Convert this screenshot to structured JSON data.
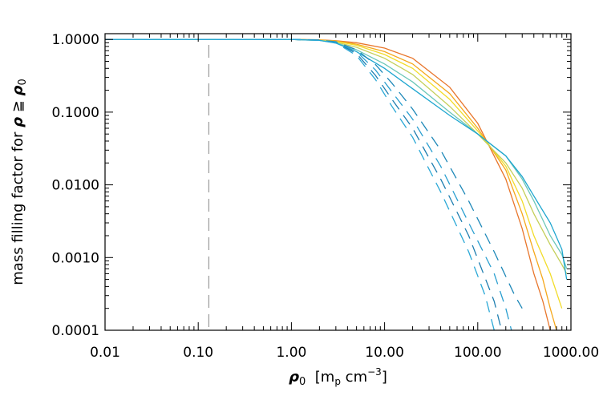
{
  "chart_data": {
    "type": "line",
    "title": "",
    "xlabel": "ρ₀ [m_p cm⁻³]",
    "xlabel_parts": {
      "symbol": "ρ",
      "subscript": "0",
      "unit": "[m",
      "unit_sub": "p",
      "unit_rest": " cm",
      "unit_sup": "−3",
      "close": "]"
    },
    "ylabel": "mass filling factor for ρ ≧ ρ₀",
    "ylabel_parts": {
      "text": "mass filling factor for ",
      "symbol": "ρ",
      "relation": " ≧ ",
      "symbol2": "ρ",
      "subscript": "0"
    },
    "x_scale": "log",
    "y_scale": "log",
    "xlim": [
      0.01,
      1000
    ],
    "ylim": [
      0.0001,
      1.2
    ],
    "x_ticks": [
      0.01,
      0.1,
      1,
      10,
      100,
      1000
    ],
    "x_tick_labels": [
      "0.01",
      "0.10",
      "1.00",
      "10.00",
      "100.00",
      "1000.00"
    ],
    "y_ticks": [
      0.0001,
      0.001,
      0.01,
      0.1,
      1
    ],
    "y_tick_labels": [
      "0.0001",
      "0.0010",
      "0.0100",
      "0.1000",
      "1.0000"
    ],
    "grid": false,
    "legend": "none",
    "vline": {
      "x": 0.13,
      "color": "#9a9a9a",
      "style": "dashed"
    },
    "series": [
      {
        "color": "#e8762c",
        "style": "solid",
        "x": [
          0.01,
          1,
          2,
          3,
          5,
          10,
          20,
          50,
          100,
          200,
          300,
          400,
          500,
          600
        ],
        "y": [
          1,
          1,
          0.99,
          0.96,
          0.9,
          0.76,
          0.55,
          0.22,
          0.07,
          0.012,
          0.0025,
          0.0006,
          0.00025,
          0.0001
        ]
      },
      {
        "color": "#f5a81c",
        "style": "solid",
        "x": [
          0.01,
          1,
          2,
          3,
          5,
          10,
          20,
          50,
          100,
          200,
          300,
          400,
          500,
          600,
          700
        ],
        "y": [
          1,
          1,
          0.98,
          0.95,
          0.86,
          0.68,
          0.46,
          0.18,
          0.06,
          0.016,
          0.004,
          0.0012,
          0.0005,
          0.0002,
          0.0001
        ]
      },
      {
        "color": "#f2dc2a",
        "style": "solid",
        "x": [
          0.01,
          1,
          2,
          3,
          5,
          10,
          20,
          50,
          100,
          200,
          300,
          400,
          600,
          800
        ],
        "y": [
          1,
          1,
          0.98,
          0.94,
          0.83,
          0.62,
          0.4,
          0.15,
          0.055,
          0.018,
          0.006,
          0.002,
          0.0006,
          0.0002
        ]
      },
      {
        "color": "#c4cf5a",
        "style": "solid",
        "x": [
          0.01,
          1,
          2,
          3,
          5,
          10,
          20,
          50,
          100,
          200,
          300,
          400,
          600,
          800,
          900
        ],
        "y": [
          1,
          1,
          0.97,
          0.92,
          0.78,
          0.55,
          0.33,
          0.12,
          0.05,
          0.02,
          0.009,
          0.004,
          0.0015,
          0.0008,
          0.0006
        ]
      },
      {
        "color": "#6cc7b8",
        "style": "solid",
        "x": [
          0.01,
          1,
          2,
          3,
          5,
          10,
          20,
          50,
          100,
          200,
          300,
          400,
          600,
          800,
          900
        ],
        "y": [
          1,
          1,
          0.97,
          0.9,
          0.72,
          0.46,
          0.26,
          0.1,
          0.05,
          0.025,
          0.012,
          0.006,
          0.002,
          0.0011,
          0.0007
        ]
      },
      {
        "color": "#1ea6d0",
        "style": "solid",
        "x": [
          0.01,
          1,
          2,
          3,
          5,
          10,
          20,
          50,
          100,
          200,
          300,
          400,
          600,
          800,
          900
        ],
        "y": [
          1,
          1,
          0.97,
          0.89,
          0.68,
          0.4,
          0.21,
          0.09,
          0.05,
          0.025,
          0.013,
          0.007,
          0.003,
          0.0013,
          0.0005
        ]
      },
      {
        "color": "#1e88b8",
        "style": "dashed",
        "x": [
          0.01,
          1,
          2,
          3,
          5,
          8,
          12,
          20,
          40,
          80,
          150,
          250,
          300
        ],
        "y": [
          1,
          1,
          0.98,
          0.93,
          0.72,
          0.45,
          0.25,
          0.11,
          0.03,
          0.006,
          0.0012,
          0.0003,
          0.0002
        ]
      },
      {
        "color": "#2a9fd0",
        "style": "dashed",
        "x": [
          0.01,
          1,
          2,
          3,
          5,
          8,
          12,
          20,
          40,
          80,
          150,
          200,
          230
        ],
        "y": [
          1,
          1,
          0.98,
          0.92,
          0.68,
          0.38,
          0.19,
          0.08,
          0.018,
          0.003,
          0.0006,
          0.0002,
          0.0001
        ]
      },
      {
        "color": "#1e7eb0",
        "style": "dashed",
        "x": [
          0.01,
          1,
          2,
          3,
          5,
          8,
          12,
          20,
          40,
          80,
          150,
          180
        ],
        "y": [
          1,
          1,
          0.98,
          0.91,
          0.64,
          0.32,
          0.15,
          0.06,
          0.012,
          0.002,
          0.00025,
          0.0001
        ]
      },
      {
        "color": "#2aa8d6",
        "style": "dashed",
        "x": [
          0.01,
          1,
          2,
          3,
          5,
          8,
          12,
          20,
          40,
          80,
          120,
          150
        ],
        "y": [
          1,
          1,
          0.97,
          0.9,
          0.6,
          0.28,
          0.12,
          0.045,
          0.008,
          0.0012,
          0.0003,
          0.0001
        ]
      }
    ]
  }
}
